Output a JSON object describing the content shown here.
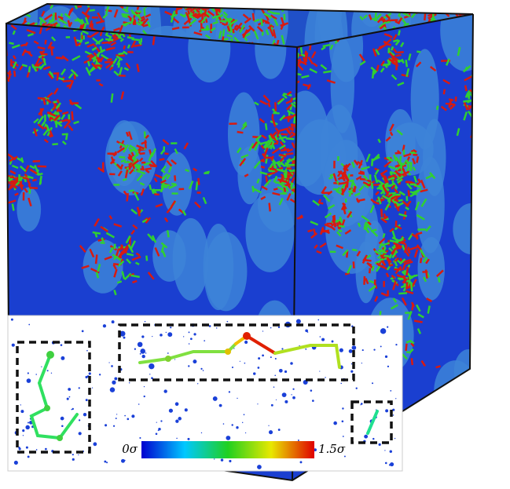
{
  "colorbar": {
    "min_label": "0σ",
    "max_label": "1.5σ"
  }
}
